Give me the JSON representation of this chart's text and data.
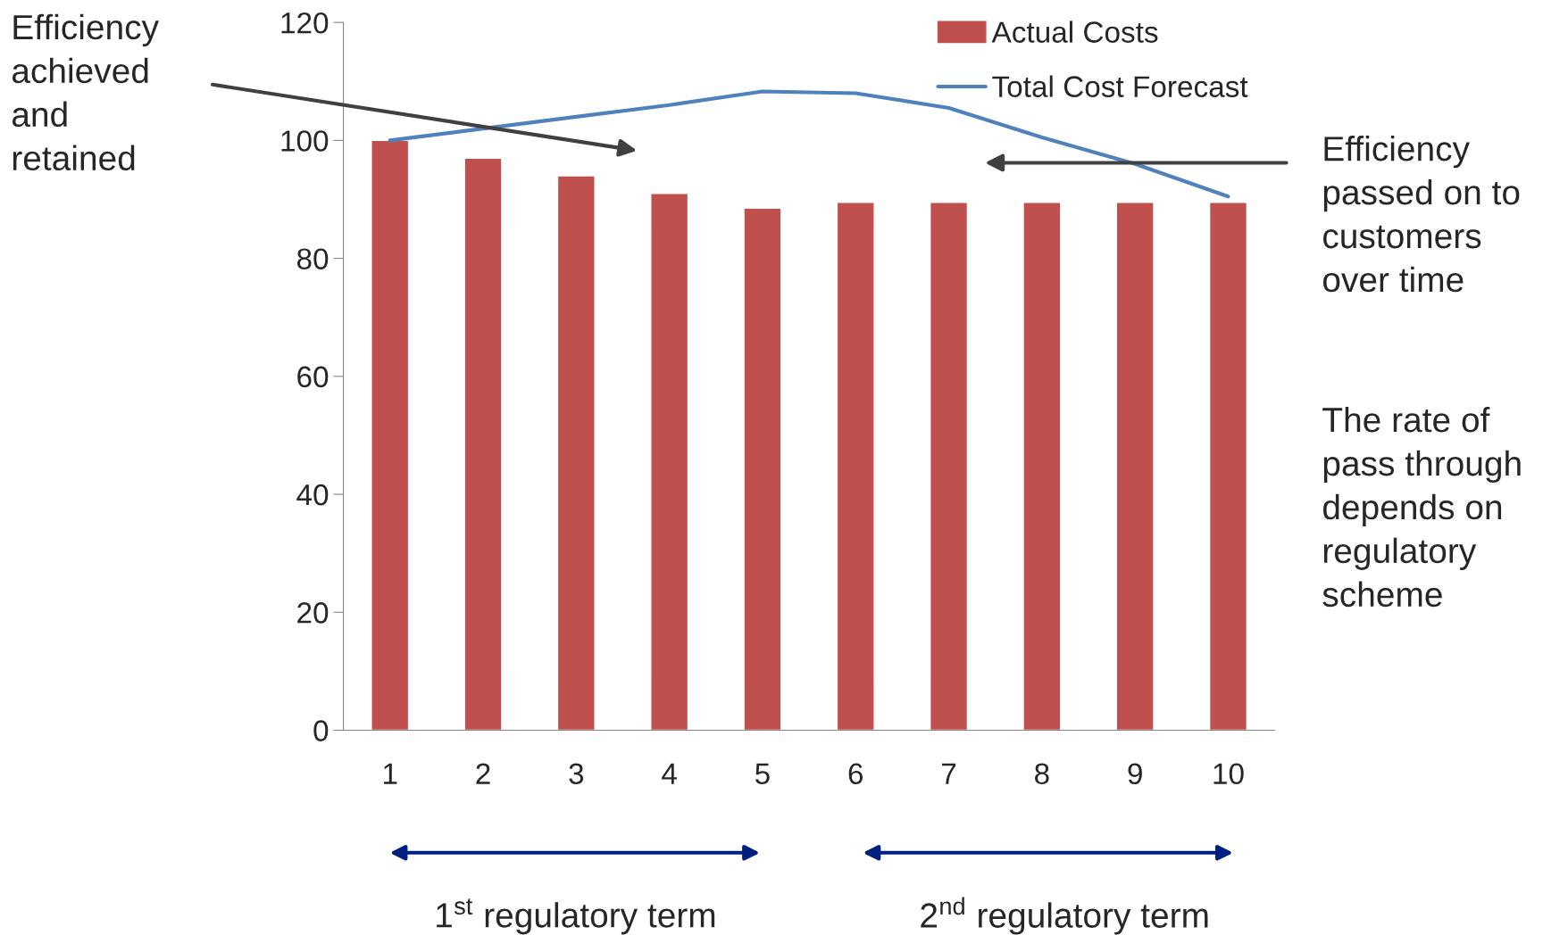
{
  "chart_data": {
    "type": "bar",
    "categories": [
      "1",
      "2",
      "3",
      "4",
      "5",
      "6",
      "7",
      "8",
      "9",
      "10"
    ],
    "series": [
      {
        "name": "Actual Costs",
        "color": "#c0504d",
        "values": [
          100,
          97,
          94,
          91,
          88.5,
          89.5,
          89.5,
          89.5,
          89.5,
          89.5
        ]
      },
      {
        "name": "Total Cost Forecast",
        "type": "line",
        "color": "#4f81bd",
        "values": [
          100,
          102,
          104,
          106,
          108.3,
          108,
          105.5,
          100.5,
          96,
          90.5
        ]
      }
    ],
    "ylim": [
      0,
      120
    ],
    "yticks": [
      0,
      20,
      40,
      60,
      80,
      100,
      120
    ],
    "grid": false,
    "legend": "top right",
    "marker": "none",
    "line_style": "solid",
    "annotations": [
      "Efficiency\nachieved\nand\nretained",
      "Efficiency\npassed on to\ncustomers\nover time",
      "The rate of\npass through\ndepends on\nregulatory\nscheme",
      "1$^{st}$ regulatory term",
      "2$^{nd}$ regulatory term"
    ]
  }
}
